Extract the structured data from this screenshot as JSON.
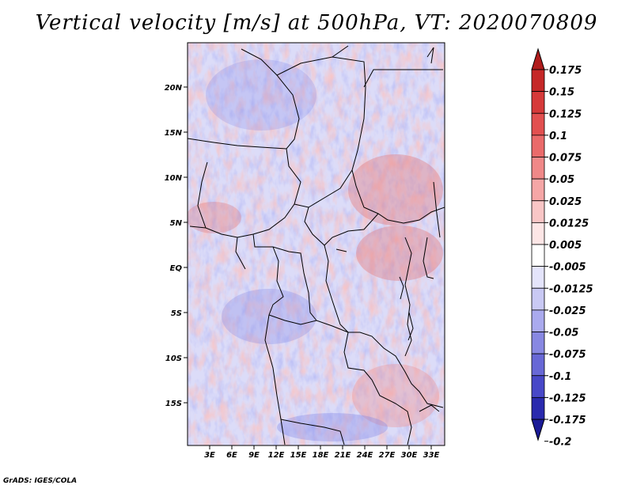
{
  "title": "Vertical velocity [m/s] at 500hPa, VT: 2020070809",
  "credit": "GrADS: IGES/COLA",
  "lat_labels": [
    "20N",
    "15N",
    "10N",
    "5N",
    "EQ",
    "5S",
    "10S",
    "15S"
  ],
  "lon_labels": [
    "3E",
    "6E",
    "9E",
    "12E",
    "15E",
    "18E",
    "21E",
    "24E",
    "27E",
    "30E",
    "33E"
  ],
  "colorbar": {
    "labels": [
      "0.175",
      "0.15",
      "0.125",
      "0.1",
      "0.075",
      "0.05",
      "0.025",
      "0.0125",
      "0.005",
      "-0.005",
      "-0.0125",
      "-0.025",
      "-0.05",
      "-0.075",
      "-0.1",
      "-0.125",
      "-0.175",
      "-0.2"
    ],
    "colors": [
      "#b01c1c",
      "#c52828",
      "#d63a3a",
      "#e25050",
      "#ea6a6a",
      "#f08888",
      "#f5a6a6",
      "#f9c6c6",
      "#fde6e6",
      "#ffffff",
      "#e4e4fb",
      "#c9c9f4",
      "#aaaaee",
      "#8888e2",
      "#6868d6",
      "#4848c8",
      "#2a2aae",
      "#1a1a96"
    ]
  },
  "map_colors": {
    "red": "#f09a9a",
    "blue": "#aeb0f0",
    "deep_blue": "#8084e6"
  }
}
